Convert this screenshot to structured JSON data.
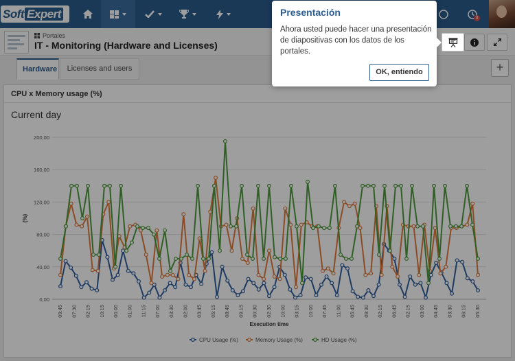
{
  "app": {
    "logo_text_1": "Soft",
    "logo_text_2": "Expert",
    "notification_count": "3"
  },
  "nav": {
    "items": [
      {
        "icon": "home-icon"
      },
      {
        "icon": "dashboard-icon",
        "active": true
      },
      {
        "icon": "check-icon"
      },
      {
        "icon": "trophy-icon"
      },
      {
        "icon": "bolt-icon"
      }
    ]
  },
  "header": {
    "breadcrumb": "Portales",
    "title": "IT - Monitoring (Hardware and Licenses)"
  },
  "tabs": [
    {
      "label": "Hardware",
      "active": true
    },
    {
      "label": "Licenses and users",
      "active": false
    }
  ],
  "panel": {
    "title": "CPU x Memory usage (%)",
    "subtitle": "Current day"
  },
  "popover": {
    "title": "Presentación",
    "body": "Ahora usted puede hacer una presentación de diapositivas con los datos de los portales.",
    "button": "OK, entiendo"
  },
  "chart_data": {
    "type": "line",
    "title": "Current day",
    "xlabel": "Execution time",
    "ylabel": "(%)",
    "ylim": [
      0,
      200
    ],
    "yticks": [
      "0,00",
      "40,00",
      "80,00",
      "120,00",
      "160,00",
      "200,00"
    ],
    "legend_position": "bottom",
    "x_tick_labels": [
      "09:45",
      "07:30",
      "02:15",
      "10:15",
      "00:00",
      "01:00",
      "11:15",
      "07:00",
      "03:30",
      "02:00",
      "03:45",
      "05:15",
      "08:45",
      "09:15",
      "00:30",
      "02:30",
      "10:00",
      "03:15",
      "10:00",
      "07:45",
      "11:00",
      "05:45",
      "09:30",
      "02:15",
      "06:45",
      "02:15",
      "03:00",
      "04:45",
      "03:30",
      "06:15",
      "05:30"
    ],
    "series": [
      {
        "name": "CPU Usage (%)",
        "color": "#2e5e9e",
        "values": [
          16,
          47,
          39,
          29,
          15,
          21,
          13,
          11,
          73,
          52,
          24,
          30,
          60,
          35,
          32,
          22,
          2,
          8,
          18,
          2,
          11,
          20,
          15,
          45,
          18,
          15,
          30,
          19,
          44,
          58,
          3,
          40,
          23,
          11,
          5,
          10,
          25,
          20,
          12,
          20,
          4,
          15,
          40,
          30,
          12,
          2,
          5,
          27,
          25,
          5,
          18,
          28,
          20,
          5,
          42,
          38,
          10,
          3,
          2,
          11,
          4,
          18,
          68,
          60,
          50,
          18,
          3,
          28,
          18,
          20,
          2,
          30,
          45,
          33,
          20,
          7,
          48,
          46,
          26,
          22,
          11
        ]
      },
      {
        "name": "Memory Usage (%)",
        "color": "#e07b3c",
        "values": [
          30,
          90,
          118,
          92,
          90,
          102,
          36,
          35,
          105,
          120,
          38,
          78,
          64,
          90,
          92,
          85,
          55,
          20,
          85,
          28,
          30,
          30,
          25,
          105,
          30,
          25,
          75,
          35,
          108,
          150,
          90,
          92,
          60,
          100,
          50,
          45,
          112,
          30,
          25,
          60,
          28,
          25,
          112,
          92,
          15,
          92,
          95,
          90,
          90,
          35,
          38,
          32,
          88,
          120,
          115,
          118,
          88,
          30,
          32,
          115,
          30,
          115,
          40,
          28,
          92,
          90,
          90,
          30,
          92,
          35,
          88,
          32,
          40,
          88,
          88,
          90,
          92,
          118,
          30
        ]
      },
      {
        "name": "HD Usage (%)",
        "color": "#4e9a3c",
        "values": [
          50,
          90,
          140,
          140,
          100,
          140,
          55,
          55,
          140,
          140,
          40,
          140,
          60,
          70,
          90,
          88,
          88,
          80,
          50,
          85,
          35,
          50,
          50,
          55,
          50,
          140,
          50,
          50,
          140,
          60,
          195,
          90,
          90,
          140,
          55,
          50,
          140,
          50,
          140,
          52,
          50,
          50,
          140,
          90,
          20,
          145,
          88,
          90,
          88,
          88,
          140,
          55,
          50,
          50,
          90,
          140,
          140,
          140,
          55,
          140,
          60,
          140,
          140,
          50,
          140,
          90,
          90,
          20,
          140,
          50,
          140,
          90,
          90,
          90,
          140,
          92,
          50
        ]
      }
    ]
  }
}
